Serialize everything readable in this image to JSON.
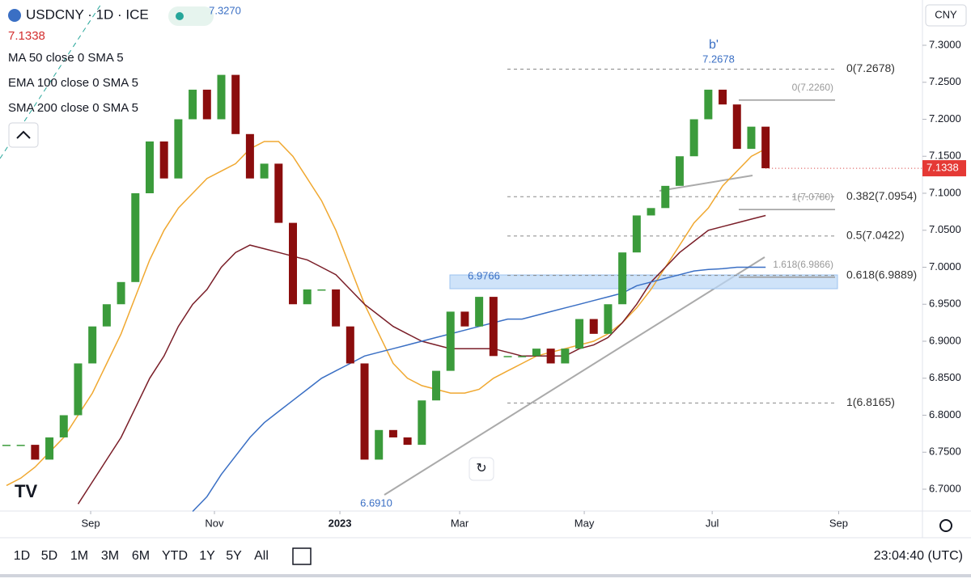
{
  "header": {
    "symbol": "USDCNY · 1D · ICE",
    "last_price": "7.1338",
    "currency": "CNY"
  },
  "chart_data": {
    "type": "candlestick",
    "x": [
      0,
      1,
      2,
      3,
      4,
      5,
      6,
      7,
      8,
      9,
      10,
      11,
      12,
      13,
      14,
      15,
      16,
      17,
      18,
      19,
      20,
      21,
      22,
      23,
      24,
      25,
      26,
      27,
      28,
      29,
      30,
      31,
      32,
      33,
      34,
      35,
      36,
      37,
      38,
      39,
      40,
      41,
      42,
      43,
      44,
      45,
      46,
      47,
      48,
      49,
      50,
      51,
      52,
      53
    ],
    "xlim": [
      -0.45,
      63.95
    ],
    "xticks": [
      {
        "value": 5.88,
        "label": "Sep"
      },
      {
        "value": 14.52,
        "label": "Nov"
      },
      {
        "value": 23.28,
        "label": "2023"
      },
      {
        "value": 31.64,
        "label": "Mar"
      },
      {
        "value": 40.34,
        "label": "May"
      },
      {
        "value": 49.27,
        "label": "Jul"
      },
      {
        "value": 58.1,
        "label": "Sep"
      }
    ],
    "ylim": [
      6.6705,
      7.3612
    ],
    "yticks": [
      {
        "value": 6.7,
        "label": "6.7000"
      },
      {
        "value": 6.75,
        "label": "6.7500"
      },
      {
        "value": 6.8,
        "label": "6.8000"
      },
      {
        "value": 6.85,
        "label": "6.8500"
      },
      {
        "value": 6.9,
        "label": "6.9000"
      },
      {
        "value": 6.95,
        "label": "6.9500"
      },
      {
        "value": 7.0,
        "label": "7.0000"
      },
      {
        "value": 7.05,
        "label": "7.0500"
      },
      {
        "value": 7.1,
        "label": "7.1000"
      },
      {
        "value": 7.15,
        "label": "7.1500"
      },
      {
        "value": 7.2,
        "label": "7.2000"
      },
      {
        "value": 7.25,
        "label": "7.2500"
      },
      {
        "value": 7.3,
        "label": "7.3000"
      }
    ],
    "up_color": "#3b9b3b",
    "down_color": "#8b0d0d",
    "close": [
      6.76,
      6.76,
      6.74,
      6.77,
      6.8,
      6.87,
      6.92,
      6.95,
      6.98,
      7.1,
      7.17,
      7.12,
      7.2,
      7.24,
      7.2,
      7.26,
      7.18,
      7.12,
      7.14,
      7.06,
      6.95,
      6.97,
      6.97,
      6.92,
      6.87,
      6.74,
      6.78,
      6.77,
      6.76,
      6.82,
      6.86,
      6.94,
      6.92,
      6.96,
      6.88,
      6.88,
      6.88,
      6.89,
      6.87,
      6.89,
      6.93,
      6.91,
      6.95,
      7.02,
      7.07,
      7.08,
      7.11,
      7.15,
      7.2,
      7.24,
      7.22,
      7.16,
      7.19,
      7.1338
    ],
    "series": [
      {
        "name": "MA 50 close 0 SMA 5",
        "color": "#f0a830",
        "values": [
          6.705,
          6.715,
          6.73,
          6.75,
          6.77,
          6.8,
          6.83,
          6.87,
          6.91,
          6.96,
          7.01,
          7.05,
          7.08,
          7.1,
          7.12,
          7.13,
          7.14,
          7.16,
          7.17,
          7.17,
          7.15,
          7.12,
          7.09,
          7.05,
          7.0,
          6.95,
          6.91,
          6.87,
          6.85,
          6.84,
          6.835,
          6.83,
          6.83,
          6.835,
          6.85,
          6.86,
          6.87,
          6.88,
          6.885,
          6.89,
          6.895,
          6.9,
          6.91,
          6.925,
          6.945,
          6.97,
          7.0,
          7.03,
          7.06,
          7.08,
          7.11,
          7.13,
          7.15,
          7.16
        ]
      },
      {
        "name": "EMA 100 close 0 SMA 5",
        "color": "#7a1e28",
        "values": [
          null,
          null,
          null,
          null,
          null,
          6.68,
          6.71,
          6.74,
          6.77,
          6.81,
          6.85,
          6.88,
          6.92,
          6.95,
          6.97,
          7.0,
          7.02,
          7.03,
          7.025,
          7.02,
          7.015,
          7.01,
          7.0,
          6.99,
          6.97,
          6.95,
          6.935,
          6.92,
          6.91,
          6.9,
          6.895,
          6.89,
          6.89,
          6.89,
          6.89,
          6.885,
          6.88,
          6.88,
          6.88,
          6.88,
          6.89,
          6.895,
          6.905,
          6.925,
          6.95,
          6.98,
          7.0,
          7.02,
          7.035,
          7.05,
          7.055,
          7.06,
          7.065,
          7.07
        ]
      },
      {
        "name": "SMA 200 close 0 SMA 5",
        "color": "#3a6fc4",
        "values": [
          null,
          null,
          null,
          null,
          null,
          null,
          null,
          null,
          null,
          null,
          null,
          null,
          null,
          6.67,
          6.69,
          6.72,
          6.745,
          6.77,
          6.79,
          6.805,
          6.82,
          6.835,
          6.85,
          6.86,
          6.87,
          6.88,
          6.885,
          6.89,
          6.895,
          6.9,
          6.905,
          6.91,
          6.915,
          6.92,
          6.925,
          6.93,
          6.93,
          6.935,
          6.94,
          6.945,
          6.95,
          6.955,
          6.96,
          6.965,
          6.975,
          6.98,
          6.985,
          6.99,
          6.995,
          6.997,
          6.998,
          7.0,
          7.0,
          7.0
        ]
      }
    ],
    "fib_levels": [
      {
        "value": 7.2678,
        "label": "0(7.2678)"
      },
      {
        "value": 7.0954,
        "label": "0.382(7.0954)"
      },
      {
        "value": 7.0422,
        "label": "0.5(7.0422)"
      },
      {
        "value": 6.9889,
        "label": "0.618(6.9889)"
      },
      {
        "value": 6.8165,
        "label": "1(6.8165)"
      }
    ],
    "fib_levels_2": [
      {
        "value": 7.226,
        "label": "0(7.2260)"
      },
      {
        "value": 7.078,
        "label": "1(7.0780)"
      },
      {
        "value": 6.9866,
        "label": "1.618(6.9866)"
      }
    ],
    "zone": [
      6.971,
      6.9896
    ],
    "annotations": [
      "b'",
      "7.2678",
      "7.3270",
      "6.9766",
      "6.6910"
    ]
  },
  "toolbar": {
    "ranges": [
      "1D",
      "5D",
      "1M",
      "3M",
      "6M",
      "YTD",
      "1Y",
      "5Y",
      "All"
    ],
    "clock": "23:04:40 (UTC)"
  }
}
